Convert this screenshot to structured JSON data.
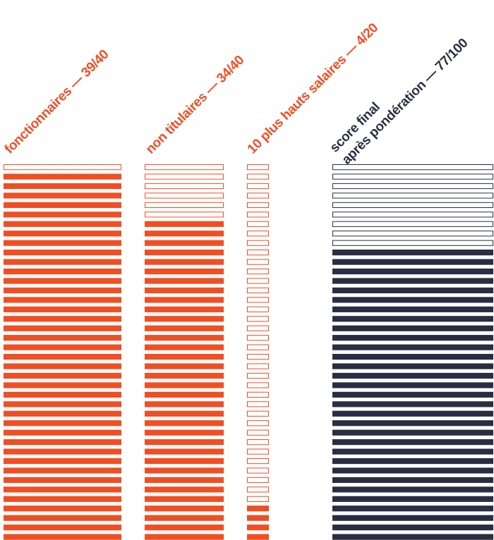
{
  "colors": {
    "orange": "#f04e23",
    "navy": "#2b2d42",
    "background": "#ffffff"
  },
  "chart_data": {
    "type": "bar",
    "columns": [
      {
        "id": "fonctionnaires",
        "label": "fonctionnaires — 39/40",
        "score": 39,
        "max": 40,
        "color": "#f04e23"
      },
      {
        "id": "non-titulaires",
        "label": "non titulaires — 34/40",
        "score": 34,
        "max": 40,
        "color": "#f04e23"
      },
      {
        "id": "hauts-salaires",
        "label": "10 plus hauts salaires — 4/20",
        "score": 4,
        "max": 20,
        "color": "#f04e23"
      },
      {
        "id": "score-final",
        "label_line1": "score final",
        "label_line2": "après pondération — 77/100",
        "score": 77,
        "max": 100,
        "color": "#2b2d42",
        "scale": 40
      }
    ]
  }
}
